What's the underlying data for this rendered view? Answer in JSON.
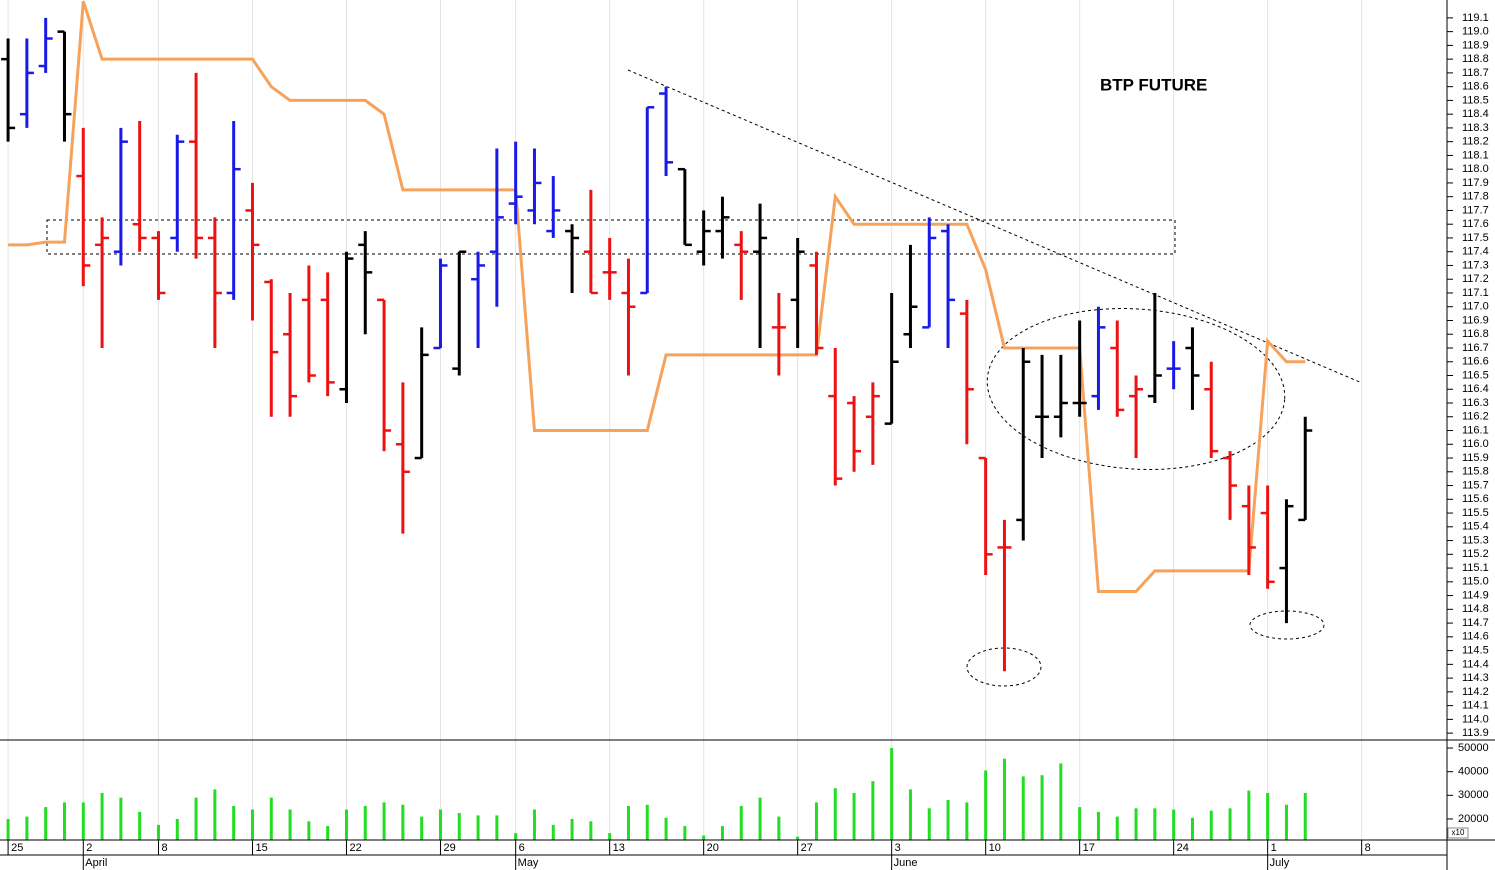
{
  "chart_data": [
    {
      "type": "ohlc",
      "title": "BTP FUTURE",
      "x": [
        0,
        1,
        2,
        3,
        4,
        5,
        6,
        7,
        8,
        9,
        10,
        11,
        12,
        13,
        14,
        15,
        16,
        17,
        18,
        19,
        20,
        21,
        22,
        23,
        24,
        25,
        26,
        27,
        28,
        29,
        30,
        31,
        32,
        33,
        34,
        35,
        36,
        37,
        38,
        39,
        40,
        41,
        42,
        43,
        44,
        45,
        46,
        47,
        48,
        49,
        50,
        51,
        52,
        53,
        54,
        55,
        56,
        57,
        58,
        59,
        60,
        61,
        62,
        63,
        64,
        65,
        66,
        67,
        68,
        69
      ],
      "open": [
        118.8,
        118.4,
        118.75,
        119.0,
        117.95,
        117.45,
        117.4,
        117.6,
        117.5,
        117.5,
        118.2,
        117.5,
        117.1,
        117.7,
        117.18,
        116.8,
        117.05,
        117.05,
        116.4,
        117.45,
        117.05,
        116.0,
        115.9,
        116.7,
        116.55,
        117.2,
        117.4,
        117.75,
        117.7,
        117.55,
        117.55,
        117.4,
        117.25,
        117.1,
        117.1,
        118.55,
        118.0,
        117.4,
        117.55,
        117.45,
        117.4,
        116.85,
        117.05,
        117.3,
        116.35,
        116.3,
        116.2,
        116.15,
        116.8,
        116.85,
        117.55,
        116.95,
        115.9,
        115.25,
        115.45,
        116.2,
        116.2,
        116.3,
        116.35,
        116.7,
        116.35,
        116.35,
        116.55,
        116.7,
        116.4,
        115.9,
        115.55,
        115.5,
        115.1,
        115.45
      ],
      "high": [
        118.95,
        118.95,
        119.1,
        119.0,
        118.3,
        117.65,
        118.3,
        118.35,
        117.55,
        118.25,
        118.7,
        117.65,
        118.35,
        117.9,
        117.2,
        117.1,
        117.3,
        117.25,
        117.4,
        117.55,
        117.05,
        116.45,
        116.85,
        117.35,
        117.4,
        117.4,
        118.15,
        118.2,
        118.15,
        117.95,
        117.6,
        117.85,
        117.5,
        117.35,
        118.45,
        118.6,
        118.0,
        117.7,
        117.8,
        117.55,
        117.75,
        117.1,
        117.5,
        117.4,
        116.7,
        116.35,
        116.45,
        117.1,
        117.45,
        117.65,
        117.6,
        117.05,
        115.9,
        115.45,
        116.7,
        116.65,
        116.65,
        116.9,
        117.0,
        116.9,
        116.5,
        117.1,
        116.75,
        116.85,
        116.6,
        115.95,
        115.7,
        115.7,
        115.6,
        116.2
      ],
      "low": [
        118.2,
        118.3,
        118.7,
        118.2,
        117.15,
        116.7,
        117.3,
        117.4,
        117.05,
        117.4,
        117.35,
        116.7,
        117.05,
        116.9,
        116.2,
        116.2,
        116.45,
        116.35,
        116.3,
        116.8,
        115.95,
        115.35,
        115.9,
        116.7,
        116.5,
        116.7,
        117.0,
        117.6,
        117.6,
        117.5,
        117.1,
        117.1,
        117.05,
        116.5,
        117.1,
        117.95,
        117.45,
        117.3,
        117.35,
        117.05,
        116.7,
        116.5,
        116.7,
        116.65,
        115.7,
        115.8,
        115.85,
        116.15,
        116.7,
        116.85,
        116.7,
        116.0,
        115.05,
        114.35,
        115.3,
        115.9,
        116.05,
        116.2,
        116.25,
        116.2,
        115.9,
        116.3,
        116.4,
        116.25,
        115.9,
        115.45,
        115.05,
        114.95,
        114.7,
        115.45
      ],
      "close": [
        118.3,
        118.7,
        118.95,
        118.4,
        117.3,
        117.5,
        118.2,
        117.5,
        117.1,
        118.2,
        117.5,
        117.1,
        118.0,
        117.45,
        116.67,
        116.35,
        116.5,
        116.45,
        117.35,
        117.25,
        116.1,
        115.8,
        116.65,
        117.3,
        117.4,
        117.3,
        117.65,
        117.8,
        117.9,
        117.7,
        117.5,
        117.1,
        117.25,
        117.0,
        118.45,
        118.05,
        117.45,
        117.55,
        117.65,
        117.4,
        117.5,
        116.85,
        117.4,
        116.7,
        115.75,
        115.95,
        116.35,
        116.6,
        117.0,
        117.5,
        117.05,
        116.4,
        115.2,
        115.25,
        116.6,
        116.2,
        116.3,
        116.3,
        116.85,
        116.25,
        116.4,
        116.5,
        116.55,
        116.5,
        115.95,
        115.7,
        115.25,
        115.0,
        115.55,
        116.1
      ],
      "colors": [
        "#000000",
        "#1a1ae6",
        "#1a1ae6",
        "#000000",
        "#ee1111",
        "#ee1111",
        "#1a1ae6",
        "#ee1111",
        "#ee1111",
        "#1a1ae6",
        "#ee1111",
        "#ee1111",
        "#1a1ae6",
        "#ee1111",
        "#ee1111",
        "#ee1111",
        "#ee1111",
        "#ee1111",
        "#000000",
        "#000000",
        "#ee1111",
        "#ee1111",
        "#000000",
        "#1a1ae6",
        "#000000",
        "#1a1ae6",
        "#1a1ae6",
        "#1a1ae6",
        "#1a1ae6",
        "#1a1ae6",
        "#000000",
        "#ee1111",
        "#ee1111",
        "#ee1111",
        "#1a1ae6",
        "#1a1ae6",
        "#000000",
        "#000000",
        "#000000",
        "#ee1111",
        "#000000",
        "#ee1111",
        "#000000",
        "#ee1111",
        "#ee1111",
        "#ee1111",
        "#ee1111",
        "#000000",
        "#000000",
        "#1a1ae6",
        "#1a1ae6",
        "#ee1111",
        "#ee1111",
        "#ee1111",
        "#000000",
        "#000000",
        "#000000",
        "#000000",
        "#1a1ae6",
        "#ee1111",
        "#ee1111",
        "#000000",
        "#1a1ae6",
        "#000000",
        "#ee1111",
        "#ee1111",
        "#ee1111",
        "#ee1111",
        "#000000",
        "#000000"
      ],
      "line_values": [
        117.45,
        117.45,
        117.47,
        117.47,
        119.22,
        118.8,
        118.8,
        118.8,
        118.8,
        118.8,
        118.8,
        118.8,
        118.8,
        118.8,
        118.6,
        118.5,
        118.5,
        118.5,
        118.5,
        118.5,
        118.4,
        117.85,
        117.85,
        117.85,
        117.85,
        117.85,
        117.85,
        117.85,
        116.1,
        116.1,
        116.1,
        116.1,
        116.1,
        116.1,
        116.1,
        116.65,
        116.65,
        116.65,
        116.65,
        116.65,
        116.65,
        116.65,
        116.65,
        116.65,
        117.8,
        117.6,
        117.6,
        117.6,
        117.6,
        117.6,
        117.6,
        117.6,
        117.27,
        116.7,
        116.7,
        116.7,
        116.7,
        116.7,
        114.93,
        114.93,
        114.93,
        115.08,
        115.08,
        115.08,
        115.08,
        115.08,
        115.08,
        116.75,
        116.6,
        116.6
      ],
      "line_color": "#f7a25a",
      "xlim": [
        -0.43,
        76.54
      ],
      "xticks": [
        {
          "value": 0,
          "label": "25"
        },
        {
          "value": 4,
          "label": "2"
        },
        {
          "value": 8,
          "label": "8"
        },
        {
          "value": 13,
          "label": "15"
        },
        {
          "value": 18,
          "label": "22"
        },
        {
          "value": 23,
          "label": "29"
        },
        {
          "value": 27,
          "label": "6"
        },
        {
          "value": 32,
          "label": "13"
        },
        {
          "value": 37,
          "label": "20"
        },
        {
          "value": 42,
          "label": "27"
        },
        {
          "value": 47,
          "label": "3"
        },
        {
          "value": 52,
          "label": "10"
        },
        {
          "value": 57,
          "label": "17"
        },
        {
          "value": 62,
          "label": "24"
        },
        {
          "value": 67,
          "label": "1"
        },
        {
          "value": 72,
          "label": "8"
        }
      ],
      "month_ticks": [
        {
          "value": 4,
          "label": "April"
        },
        {
          "value": 27,
          "label": "May"
        },
        {
          "value": 47,
          "label": "June"
        },
        {
          "value": 67,
          "label": "July"
        }
      ],
      "ylim": [
        113.85,
        119.23
      ],
      "yticks": [
        113.9,
        {
          "value": 114,
          "label": "114.0"
        },
        114.1,
        114.2,
        114.3,
        114.4,
        114.5,
        114.6,
        114.7,
        114.8,
        114.9,
        {
          "value": 115,
          "label": "115.0"
        },
        115.1,
        115.2,
        115.3,
        115.4,
        115.5,
        115.6,
        115.7,
        115.8,
        115.9,
        {
          "value": 116,
          "label": "116.0"
        },
        116.1,
        116.2,
        116.3,
        116.4,
        116.5,
        116.6,
        116.7,
        116.8,
        116.9,
        {
          "value": 117,
          "label": "117.0"
        },
        117.1,
        117.2,
        117.3,
        117.4,
        117.5,
        117.6,
        117.7,
        117.8,
        117.9,
        {
          "value": 118,
          "label": "118.0"
        },
        118.1,
        118.2,
        118.3,
        118.4,
        118.5,
        118.6,
        118.7,
        118.8,
        118.9,
        {
          "value": 119,
          "label": "119.0"
        },
        119.1
      ],
      "grid": true
    },
    {
      "type": "bar",
      "values": [
        20000,
        21000,
        25000,
        27000,
        27000,
        31000,
        29000,
        23000,
        17500,
        20000,
        29000,
        32500,
        25500,
        24000,
        29000,
        24000,
        19000,
        17000,
        24000,
        25500,
        27000,
        26000,
        21000,
        24000,
        22500,
        21500,
        21500,
        14000,
        24000,
        17500,
        20000,
        19000,
        14000,
        25500,
        26000,
        20500,
        17000,
        13000,
        17000,
        25500,
        29000,
        21000,
        12500,
        27000,
        33000,
        31000,
        36000,
        50000,
        32500,
        24500,
        28000,
        27000,
        40500,
        45500,
        38000,
        38500,
        43500,
        25000,
        23000,
        21000,
        24500,
        24500,
        24000,
        20500,
        23500,
        24500,
        32000,
        31000,
        26000,
        31000
      ],
      "color": "#22dd22",
      "ylim": [
        11100,
        53400
      ],
      "yticks": [
        20000,
        30000,
        40000,
        50000
      ],
      "axis_note": "x10"
    }
  ]
}
